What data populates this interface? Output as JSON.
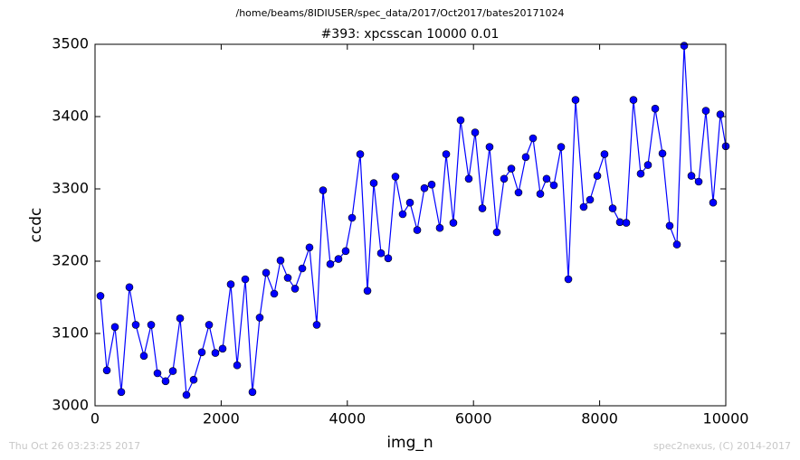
{
  "chart_data": {
    "type": "line",
    "suptitle": "/home/beams/8IDIUSER/spec_data/2017/Oct2017/bates20171024",
    "title": "#393: xpcsscan 10000 0.01",
    "xlabel": "img_n",
    "ylabel": "ccdc",
    "timestamp": "Thu Oct 26 03:23:25 2017",
    "credit": "spec2nexus, (C) 2014-2017",
    "xlim": [
      0,
      10000
    ],
    "xticks": [
      0,
      2000,
      4000,
      6000,
      8000,
      10000
    ],
    "ylim": [
      3000,
      3500
    ],
    "yticks": [
      3000,
      3100,
      3200,
      3300,
      3400,
      3500
    ],
    "grid": false,
    "series": [
      {
        "name": "ccdc",
        "color": "#0000ff",
        "x": [
          86,
          187,
          316,
          416,
          545,
          646,
          775,
          890,
          990,
          1119,
          1234,
          1349,
          1449,
          1564,
          1693,
          1808,
          1908,
          2023,
          2152,
          2253,
          2382,
          2496,
          2611,
          2712,
          2841,
          2941,
          3056,
          3171,
          3286,
          3400,
          3515,
          3615,
          3730,
          3859,
          3974,
          4075,
          4204,
          4319,
          4419,
          4534,
          4648,
          4763,
          4878,
          4993,
          5108,
          5222,
          5337,
          5466,
          5567,
          5681,
          5796,
          5925,
          6026,
          6141,
          6255,
          6370,
          6485,
          6600,
          6714,
          6829,
          6944,
          7059,
          7159,
          7274,
          7389,
          7504,
          7618,
          7747,
          7848,
          7963,
          8077,
          8207,
          8321,
          8422,
          8536,
          8651,
          8766,
          8881,
          8996,
          9110,
          9225,
          9340,
          9455,
          9570,
          9684,
          9799,
          9914,
          10000
        ],
        "values": [
          3152,
          3049,
          3109,
          3019,
          3164,
          3112,
          3069,
          3112,
          3045,
          3034,
          3048,
          3121,
          3015,
          3036,
          3074,
          3112,
          3073,
          3079,
          3168,
          3056,
          3175,
          3019,
          3122,
          3184,
          3155,
          3201,
          3177,
          3162,
          3190,
          3219,
          3112,
          3298,
          3196,
          3203,
          3214,
          3260,
          3348,
          3159,
          3308,
          3211,
          3204,
          3317,
          3265,
          3281,
          3243,
          3301,
          3306,
          3246,
          3348,
          3253,
          3395,
          3314,
          3378,
          3273,
          3358,
          3240,
          3314,
          3328,
          3295,
          3344,
          3370,
          3293,
          3314,
          3305,
          3358,
          3175,
          3423,
          3275,
          3285,
          3318,
          3348,
          3273,
          3254,
          3253,
          3423,
          3321,
          3333,
          3411,
          3349,
          3249,
          3223,
          3498,
          3318,
          3310,
          3408,
          3281,
          3403,
          3359
        ]
      }
    ]
  }
}
